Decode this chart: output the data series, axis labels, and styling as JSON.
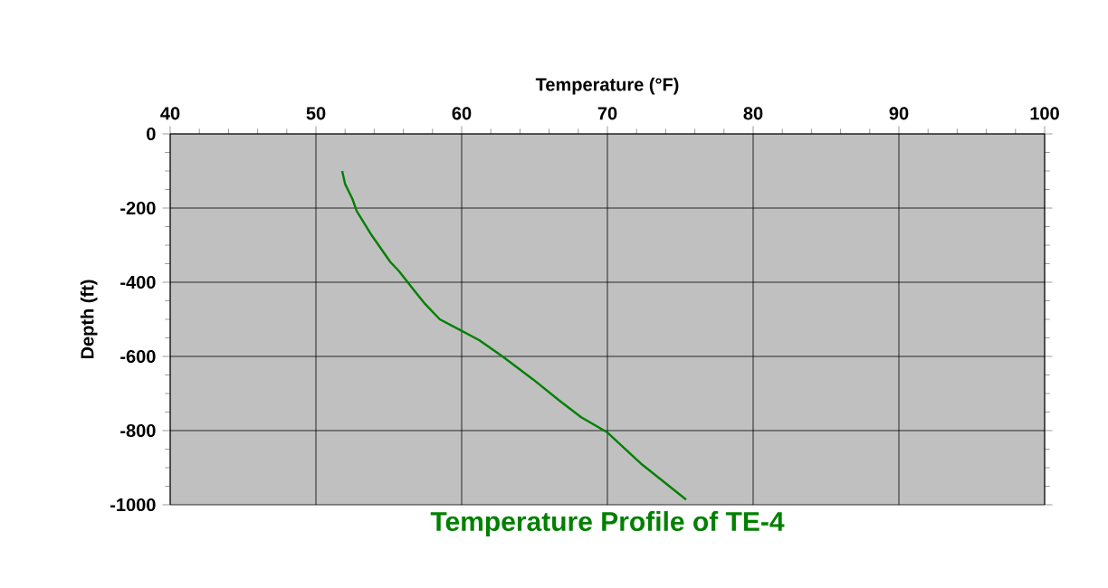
{
  "chart_data": {
    "type": "line",
    "title": "Temperature Profile of TE-4",
    "xlabel": "Temperature (°F)",
    "ylabel": "Depth (ft)",
    "x": [
      51.8,
      52.0,
      52.5,
      52.8,
      53.8,
      55.1,
      55.7,
      56.3,
      56.6,
      57.5,
      58.5,
      59.9,
      61.2,
      62.8,
      64.9,
      66.7,
      68.2,
      70.0,
      72.3,
      75.4
    ],
    "series": [
      {
        "color": "#008000",
        "values": [
          -100,
          -135,
          -175,
          -208,
          -272,
          -345,
          -370,
          -400,
          -415,
          -459,
          -500,
          -529,
          -556,
          -600,
          -662,
          -719,
          -764,
          -805,
          -889,
          -986
        ]
      }
    ],
    "xlim": [
      40,
      100
    ],
    "xticks": [
      40,
      50,
      60,
      70,
      80,
      90,
      100
    ],
    "ylim": [
      -1000,
      0
    ],
    "yticks": [
      -1000,
      -800,
      -600,
      -400,
      -200,
      0
    ],
    "grid": true,
    "marker": "none",
    "line_style": "solid"
  }
}
